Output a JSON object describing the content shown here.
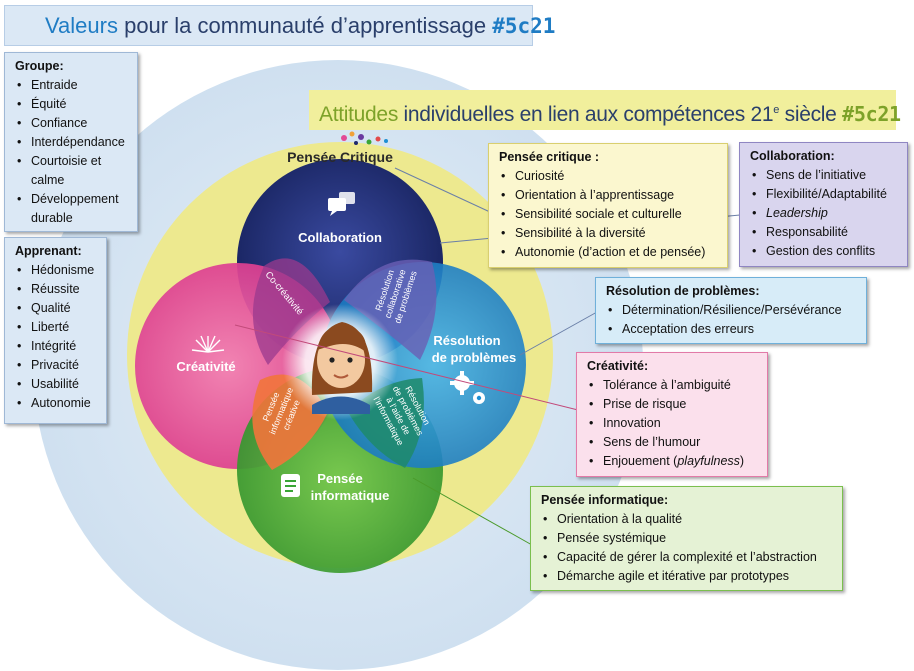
{
  "header": {
    "title_part1": "Valeurs",
    "title_part2": " pour la communauté d’apprentissage ",
    "title_tag": "#5c21"
  },
  "attitudes_banner": {
    "part1": "Attitudes",
    "part2": " individuelles  en lien aux compétences  21",
    "sup": "e",
    "part3": " siècle ",
    "tag": "#5c21"
  },
  "groupe": {
    "title": "Groupe:",
    "items": [
      "Entraide",
      "Équité",
      "Confiance",
      "Interdépendance",
      "Courtoisie et calme",
      "Développement durable"
    ]
  },
  "apprenant": {
    "title": "Apprenant:",
    "items": [
      "Hédonisme",
      "Réussite",
      "Qualité",
      "Liberté",
      "Intégrité",
      "Privacité",
      "Usabilité",
      "Autonomie"
    ]
  },
  "pensee_critique": {
    "title": "Pensée critique :",
    "items": [
      "Curiosité",
      "Orientation à l’apprentissage",
      "Sensibilité sociale et culturelle",
      "Sensibilité à la diversité",
      "Autonomie (d’action et de pensée)"
    ]
  },
  "collaboration": {
    "title": "Collaboration:",
    "items": [
      "Sens de l’initiative",
      "Flexibilité/Adaptabilité",
      "Leadership",
      "Responsabilité",
      "Gestion des conflits"
    ]
  },
  "resolution": {
    "title": "Résolution de problèmes:",
    "items": [
      "Détermination/Résilience/Persévérance",
      "Acceptation des erreurs"
    ]
  },
  "creativite": {
    "title": "Créativité:",
    "items": [
      "Tolérance à l’ambiguité",
      "Prise de risque",
      "Innovation",
      "Sens de l’humour"
    ],
    "last_item_prefix": "Enjouement (",
    "last_item_italic": "playfulness",
    "last_item_suffix": ")"
  },
  "pensee_info": {
    "title": "Pensée informatique:",
    "items": [
      "Orientation à la qualité",
      "Pensée systémique",
      "Capacité de gérer la complexité et l’abstraction",
      "Démarche agile et itérative par prototypes"
    ]
  },
  "diagram": {
    "outer_label": "Pensée Critique",
    "collaboration": "Collaboration",
    "resolution_line1": "Résolution",
    "resolution_line2": "de problèmes",
    "creativite": "Créativité",
    "pensee_info_line1": "Pensée",
    "pensee_info_line2": "informatique",
    "co_creativite": "Co-créativité",
    "rcp_line1": "Résolution",
    "rcp_line2": "collaborative",
    "rcp_line3": "de problèmes",
    "pic_line1": "Pensée",
    "pic_line2": "informatique",
    "pic_line3": "créative",
    "rpi_line1": "Résolution",
    "rpi_line2": "de problèmes",
    "rpi_line3": "à l’aide de",
    "rpi_line4": "l’informatique"
  },
  "colors": {
    "outer_circle": "#d8e6f3",
    "yellow_ring": "#ede98f",
    "collaboration": "#1f2a6b",
    "resolution": "#1e8fd3",
    "creativite": "#e24a95",
    "pensee_info": "#3aa536"
  }
}
